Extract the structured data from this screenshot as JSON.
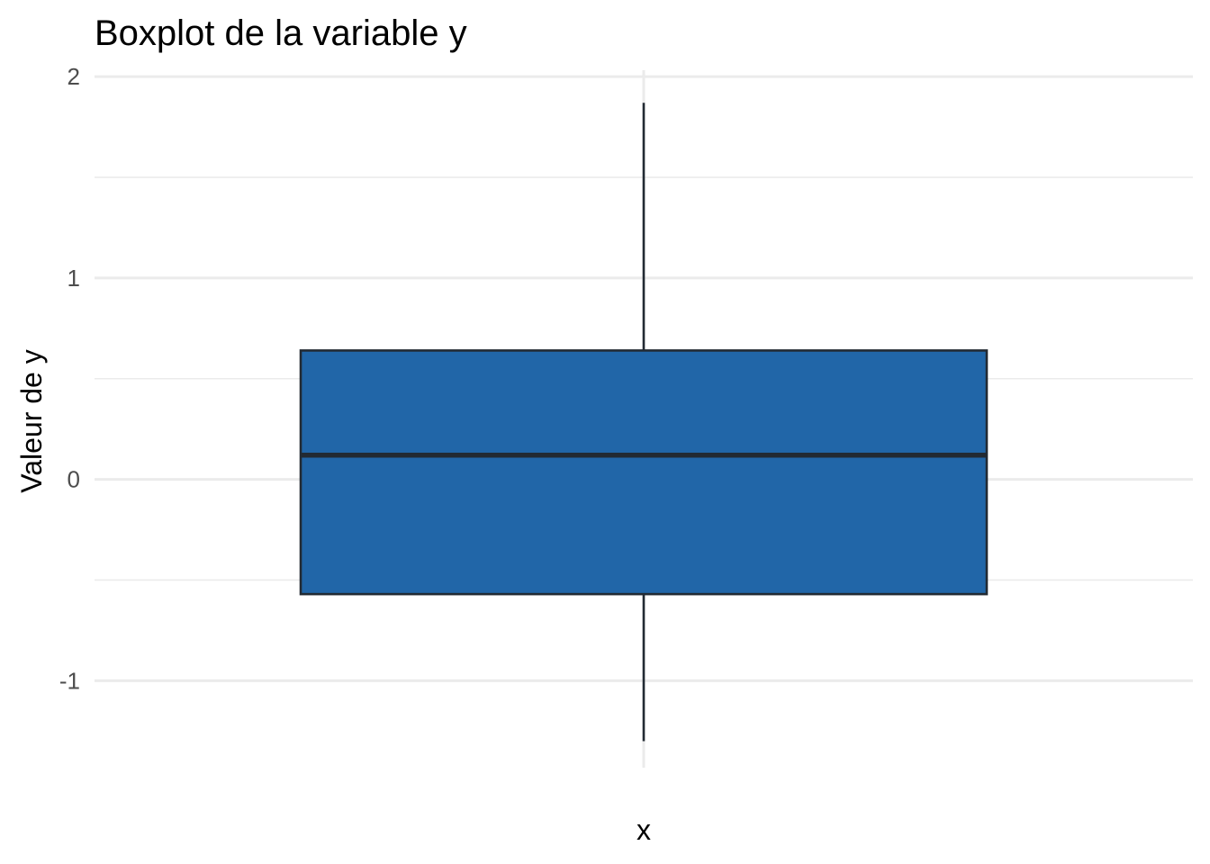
{
  "chart_data": {
    "type": "boxplot",
    "title": "Boxplot de la variable y",
    "xlabel": "x",
    "ylabel": "Valeur de y",
    "ylim": [
      -1.45,
      2.05
    ],
    "y_ticks": [
      -1,
      0,
      1,
      2
    ],
    "y_tick_labels": [
      "-1",
      "0",
      "1",
      "2"
    ],
    "y_minor_ticks": [
      -0.5,
      0.5,
      1.5
    ],
    "grid": true,
    "box": {
      "whisker_low": -1.3,
      "q1": -0.57,
      "median": 0.12,
      "q3": 0.64,
      "whisker_high": 1.87
    },
    "colors": {
      "fill": "#2166a8",
      "outline": "#222a33",
      "grid": "#ebebeb"
    }
  }
}
